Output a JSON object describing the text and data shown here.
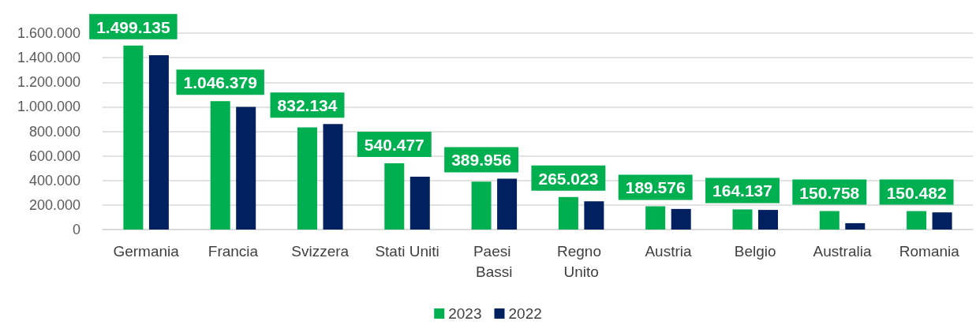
{
  "chart_data": {
    "type": "bar",
    "categories": [
      "Germania",
      "Francia",
      "Svizzera",
      "Stati Uniti",
      "Paesi Bassi",
      "Regno Unito",
      "Austria",
      "Belgio",
      "Australia",
      "Romania"
    ],
    "series": [
      {
        "name": "2023",
        "color": "#00b050",
        "values": [
          1499135,
          1046379,
          832134,
          540477,
          389956,
          265023,
          189576,
          164137,
          150758,
          150482
        ],
        "value_labels": [
          "1.499.135",
          "1.046.379",
          "832.134",
          "540.477",
          "389.956",
          "265.023",
          "189.576",
          "164.137",
          "150.758",
          "150.482"
        ]
      },
      {
        "name": "2022",
        "color": "#002060",
        "values": [
          1420000,
          1000000,
          860000,
          430000,
          415000,
          230000,
          168000,
          160000,
          52000,
          140000
        ]
      }
    ],
    "ylim": [
      0,
      1600000
    ],
    "yticks": [
      0,
      {
        "value": 200000,
        "label": "200.000"
      },
      {
        "value": 400000,
        "label": "400.000"
      },
      {
        "value": 600000,
        "label": "600.000"
      },
      {
        "value": 800000,
        "label": "800.000"
      },
      {
        "value": 1000000,
        "label": "1.000.000"
      },
      {
        "value": 1200000,
        "label": "1.200.000"
      },
      {
        "value": 1400000,
        "label": "1.400.000"
      },
      {
        "value": 1600000,
        "label": "1.600.000"
      }
    ],
    "grid": "y",
    "legend": "bottom"
  }
}
